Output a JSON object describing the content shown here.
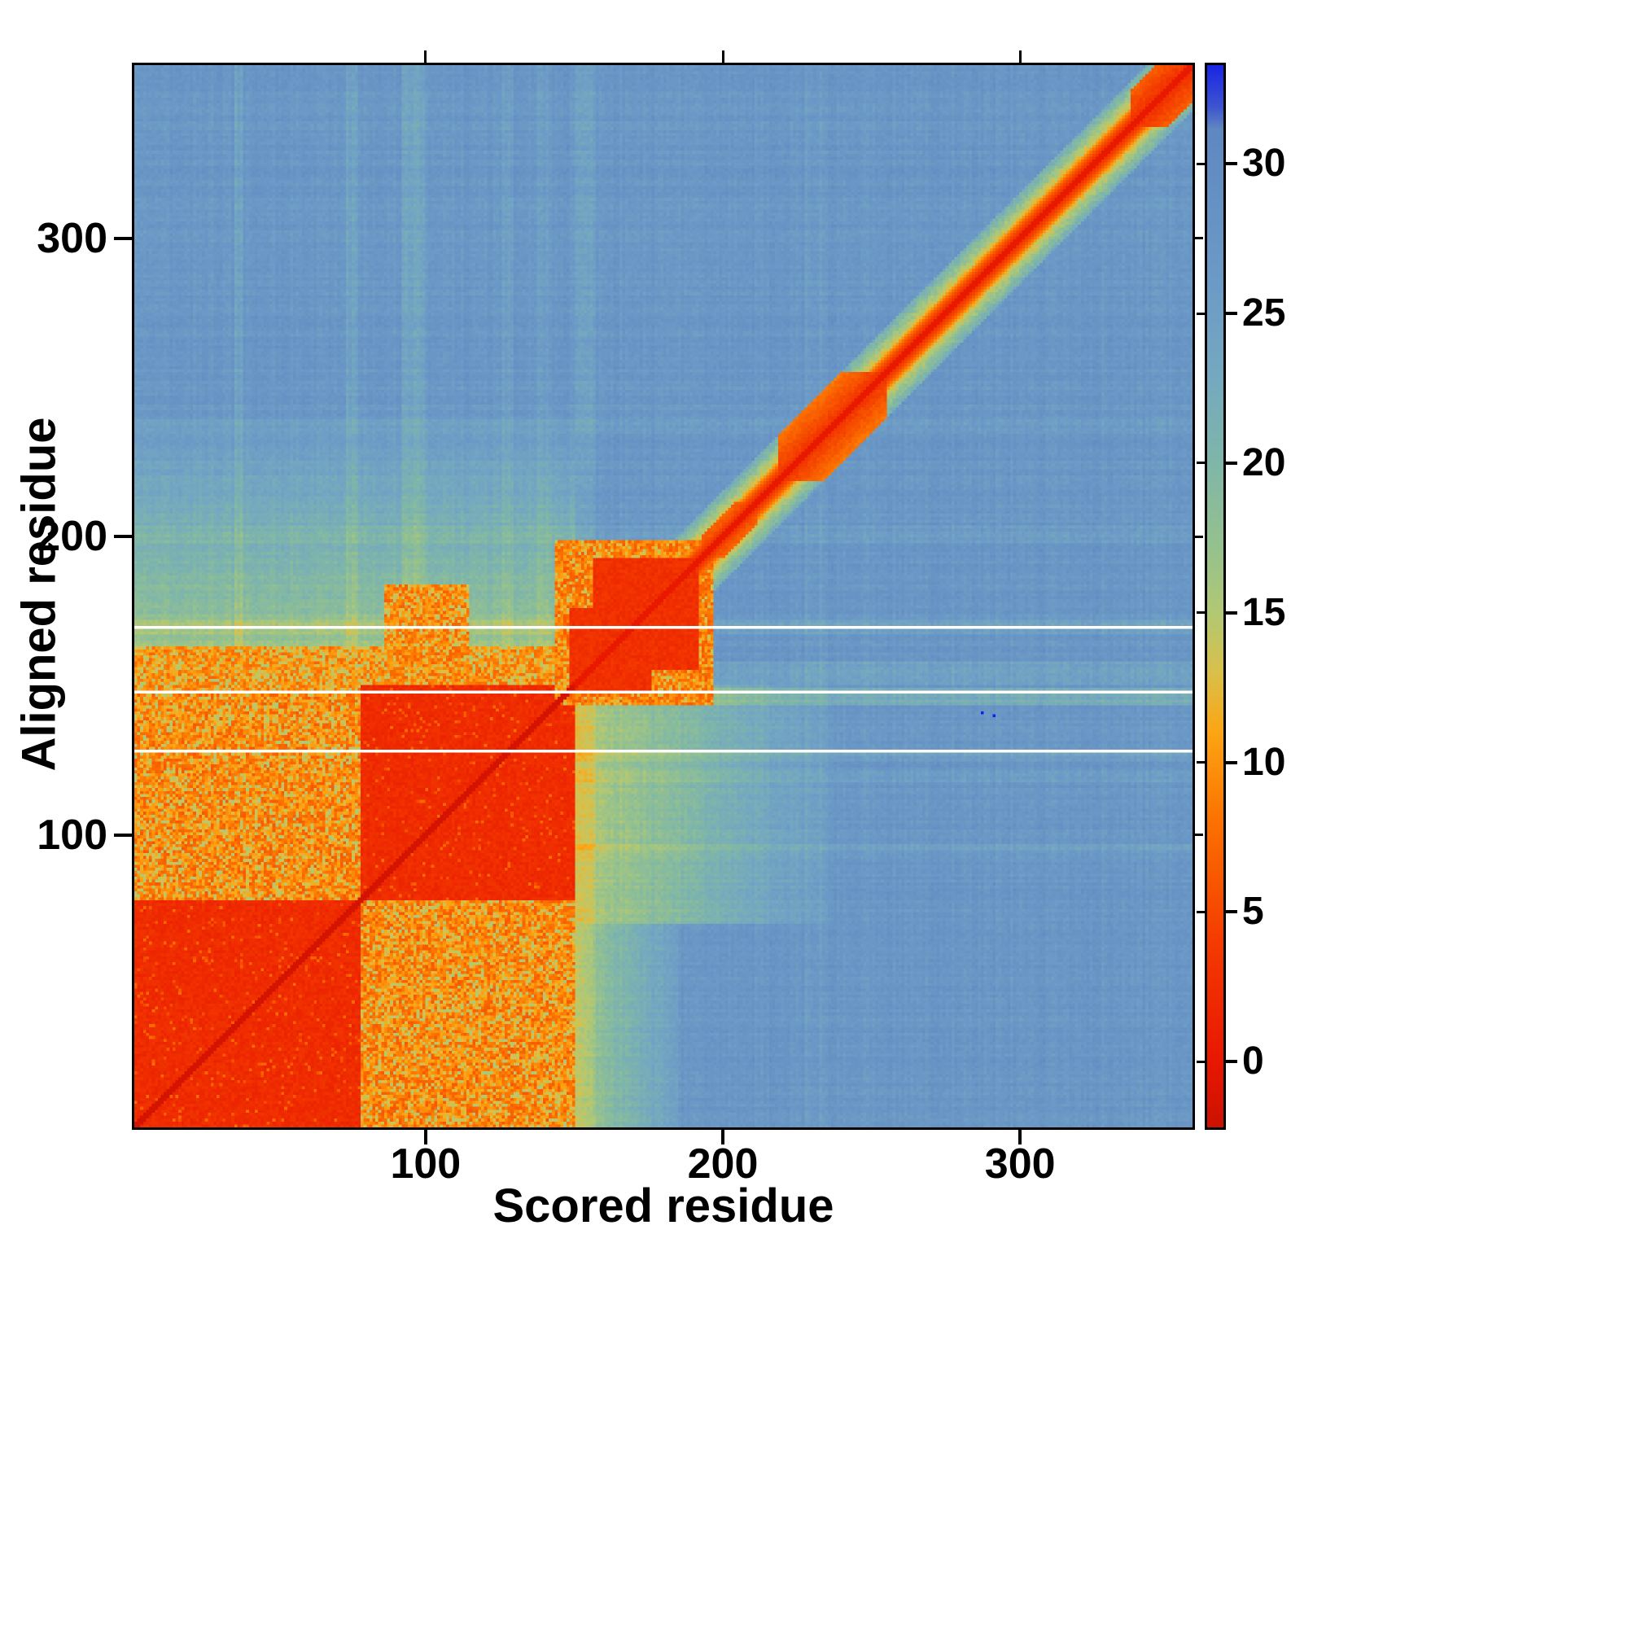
{
  "chart_data": {
    "type": "heatmap",
    "title": "",
    "xlabel": "Scored residue",
    "ylabel": "Aligned residue",
    "x_range": [
      1,
      360
    ],
    "y_range": [
      1,
      360
    ],
    "x_ticks": [
      100,
      200,
      300
    ],
    "y_ticks": [
      100,
      200,
      300
    ],
    "grid": false,
    "legend_position": "right-colorbar",
    "colorbar": {
      "ticks": [
        0,
        5,
        10,
        15,
        20,
        25,
        30
      ],
      "vmin": -2.2,
      "vmax": 33.3,
      "colormap_stops": [
        [
          -3,
          "#c01000"
        ],
        [
          0,
          "#e81700"
        ],
        [
          4,
          "#f43b00"
        ],
        [
          8,
          "#fb7100"
        ],
        [
          11,
          "#fca513"
        ],
        [
          13,
          "#d9c04a"
        ],
        [
          15,
          "#b2c873"
        ],
        [
          17,
          "#97c28c"
        ],
        [
          20,
          "#7fb6a8"
        ],
        [
          23,
          "#74a8c0"
        ],
        [
          26,
          "#6c9ac6"
        ],
        [
          29,
          "#6590c3"
        ],
        [
          31.2,
          "#5f87c0"
        ],
        [
          31.9,
          "#3e55cf"
        ],
        [
          33.5,
          "#141fe8"
        ]
      ]
    },
    "structure": {
      "base_value": 27,
      "noise_cell": 2.2,
      "noise_rowcol": 0.8,
      "white_rows": [
        128,
        148,
        170
      ],
      "blue_specks": [
        [
          289,
          141
        ],
        [
          293,
          140
        ]
      ],
      "gradient_regions": [
        {
          "name": "upper-left-transition",
          "x": [
            1,
            150
          ],
          "y": [
            150,
            240
          ],
          "axis": "y",
          "v0": 15.5,
          "v1": 26
        },
        {
          "name": "right-of-domain-transition",
          "x": [
            150,
            238
          ],
          "y": [
            70,
            150
          ],
          "axis": "x",
          "v0": 15,
          "v1": 26
        },
        {
          "name": "lower-right-of-domain-transition",
          "x": [
            150,
            185
          ],
          "y": [
            1,
            70
          ],
          "axis": "x",
          "v0": 16,
          "v1": 25
        }
      ],
      "regions": [
        {
          "name": "cross-block-a",
          "x": [
            1,
            77
          ],
          "y": [
            78,
            150
          ],
          "value": 9,
          "noise": 3,
          "speckle": {
            "chance": 0.22,
            "value": 14
          }
        },
        {
          "name": "cross-block-b",
          "x": [
            78,
            150
          ],
          "y": [
            1,
            77
          ],
          "value": 9,
          "noise": 3,
          "speckle": {
            "chance": 0.22,
            "value": 14
          }
        },
        {
          "name": "fringe-above-domain",
          "x": [
            1,
            150
          ],
          "y": [
            148,
            163
          ],
          "value": 9.5,
          "noise": 2.5,
          "speckle": {
            "chance": 0.3,
            "value": 14
          }
        },
        {
          "name": "orange-patch",
          "x": [
            86,
            114
          ],
          "y": [
            150,
            184
          ],
          "value": 9,
          "noise": 2.5,
          "speckle": {
            "chance": 0.25,
            "value": 13.5
          }
        },
        {
          "name": "domain-block-1",
          "x": [
            1,
            77
          ],
          "y": [
            1,
            77
          ],
          "value": 2.3,
          "noise": 1,
          "speckle": {
            "chance": 0.05,
            "value": 6.5
          }
        },
        {
          "name": "domain-block-2",
          "x": [
            78,
            150
          ],
          "y": [
            78,
            150
          ],
          "value": 2.3,
          "noise": 1,
          "speckle": {
            "chance": 0.05,
            "value": 6.5
          }
        },
        {
          "name": "linker-blob-fringe",
          "x": [
            144,
            197
          ],
          "y": [
            144,
            199
          ],
          "value": 8.5,
          "noise": 2.5,
          "speckle": {
            "chance": 0.2,
            "value": 13
          }
        },
        {
          "name": "linker-blob-core-a",
          "x": [
            149,
            176
          ],
          "y": [
            148,
            176
          ],
          "value": 2.8,
          "noise": 1
        },
        {
          "name": "linker-blob-core-b",
          "x": [
            157,
            192
          ],
          "y": [
            156,
            193
          ],
          "value": 2.8,
          "noise": 1
        }
      ],
      "diag_blobs": [
        {
          "range": [
            194,
            212
          ],
          "width": 7,
          "value": 3.5,
          "slope": 0.5
        },
        {
          "range": [
            220,
            256
          ],
          "width": 15,
          "value": 3,
          "slope": 0.35
        },
        {
          "range": [
            340,
            361
          ],
          "width": 12,
          "value": 2.5,
          "slope": 0.35
        }
      ],
      "diagonal_halo": {
        "inner": 4,
        "mid": 7,
        "outer": 16
      },
      "row_streaks": [
        {
          "from": 94,
          "to": 96,
          "delta": -2.5
        },
        {
          "from": 118,
          "to": 121,
          "delta": -2
        },
        {
          "from": 125,
          "to": 127,
          "delta": -3
        },
        {
          "from": 144,
          "to": 149,
          "delta": -6
        },
        {
          "from": 151,
          "to": 158,
          "delta": -3.5
        },
        {
          "from": 168,
          "to": 172,
          "delta": -3
        },
        {
          "from": 199,
          "to": 204,
          "delta": -1.5
        },
        {
          "from": 236,
          "to": 240,
          "delta": -1.5
        }
      ],
      "col_streaks": [
        {
          "from": 35,
          "to": 37,
          "delta": -3
        },
        {
          "from": 73,
          "to": 76,
          "delta": -3
        },
        {
          "from": 92,
          "to": 99,
          "delta": -4.5
        },
        {
          "from": 126,
          "to": 129,
          "delta": -3
        },
        {
          "from": 138,
          "to": 141,
          "delta": -2.5
        },
        {
          "from": 151,
          "to": 157,
          "delta": -3
        },
        {
          "from": 229,
          "to": 236,
          "delta": -1.5
        }
      ]
    }
  }
}
